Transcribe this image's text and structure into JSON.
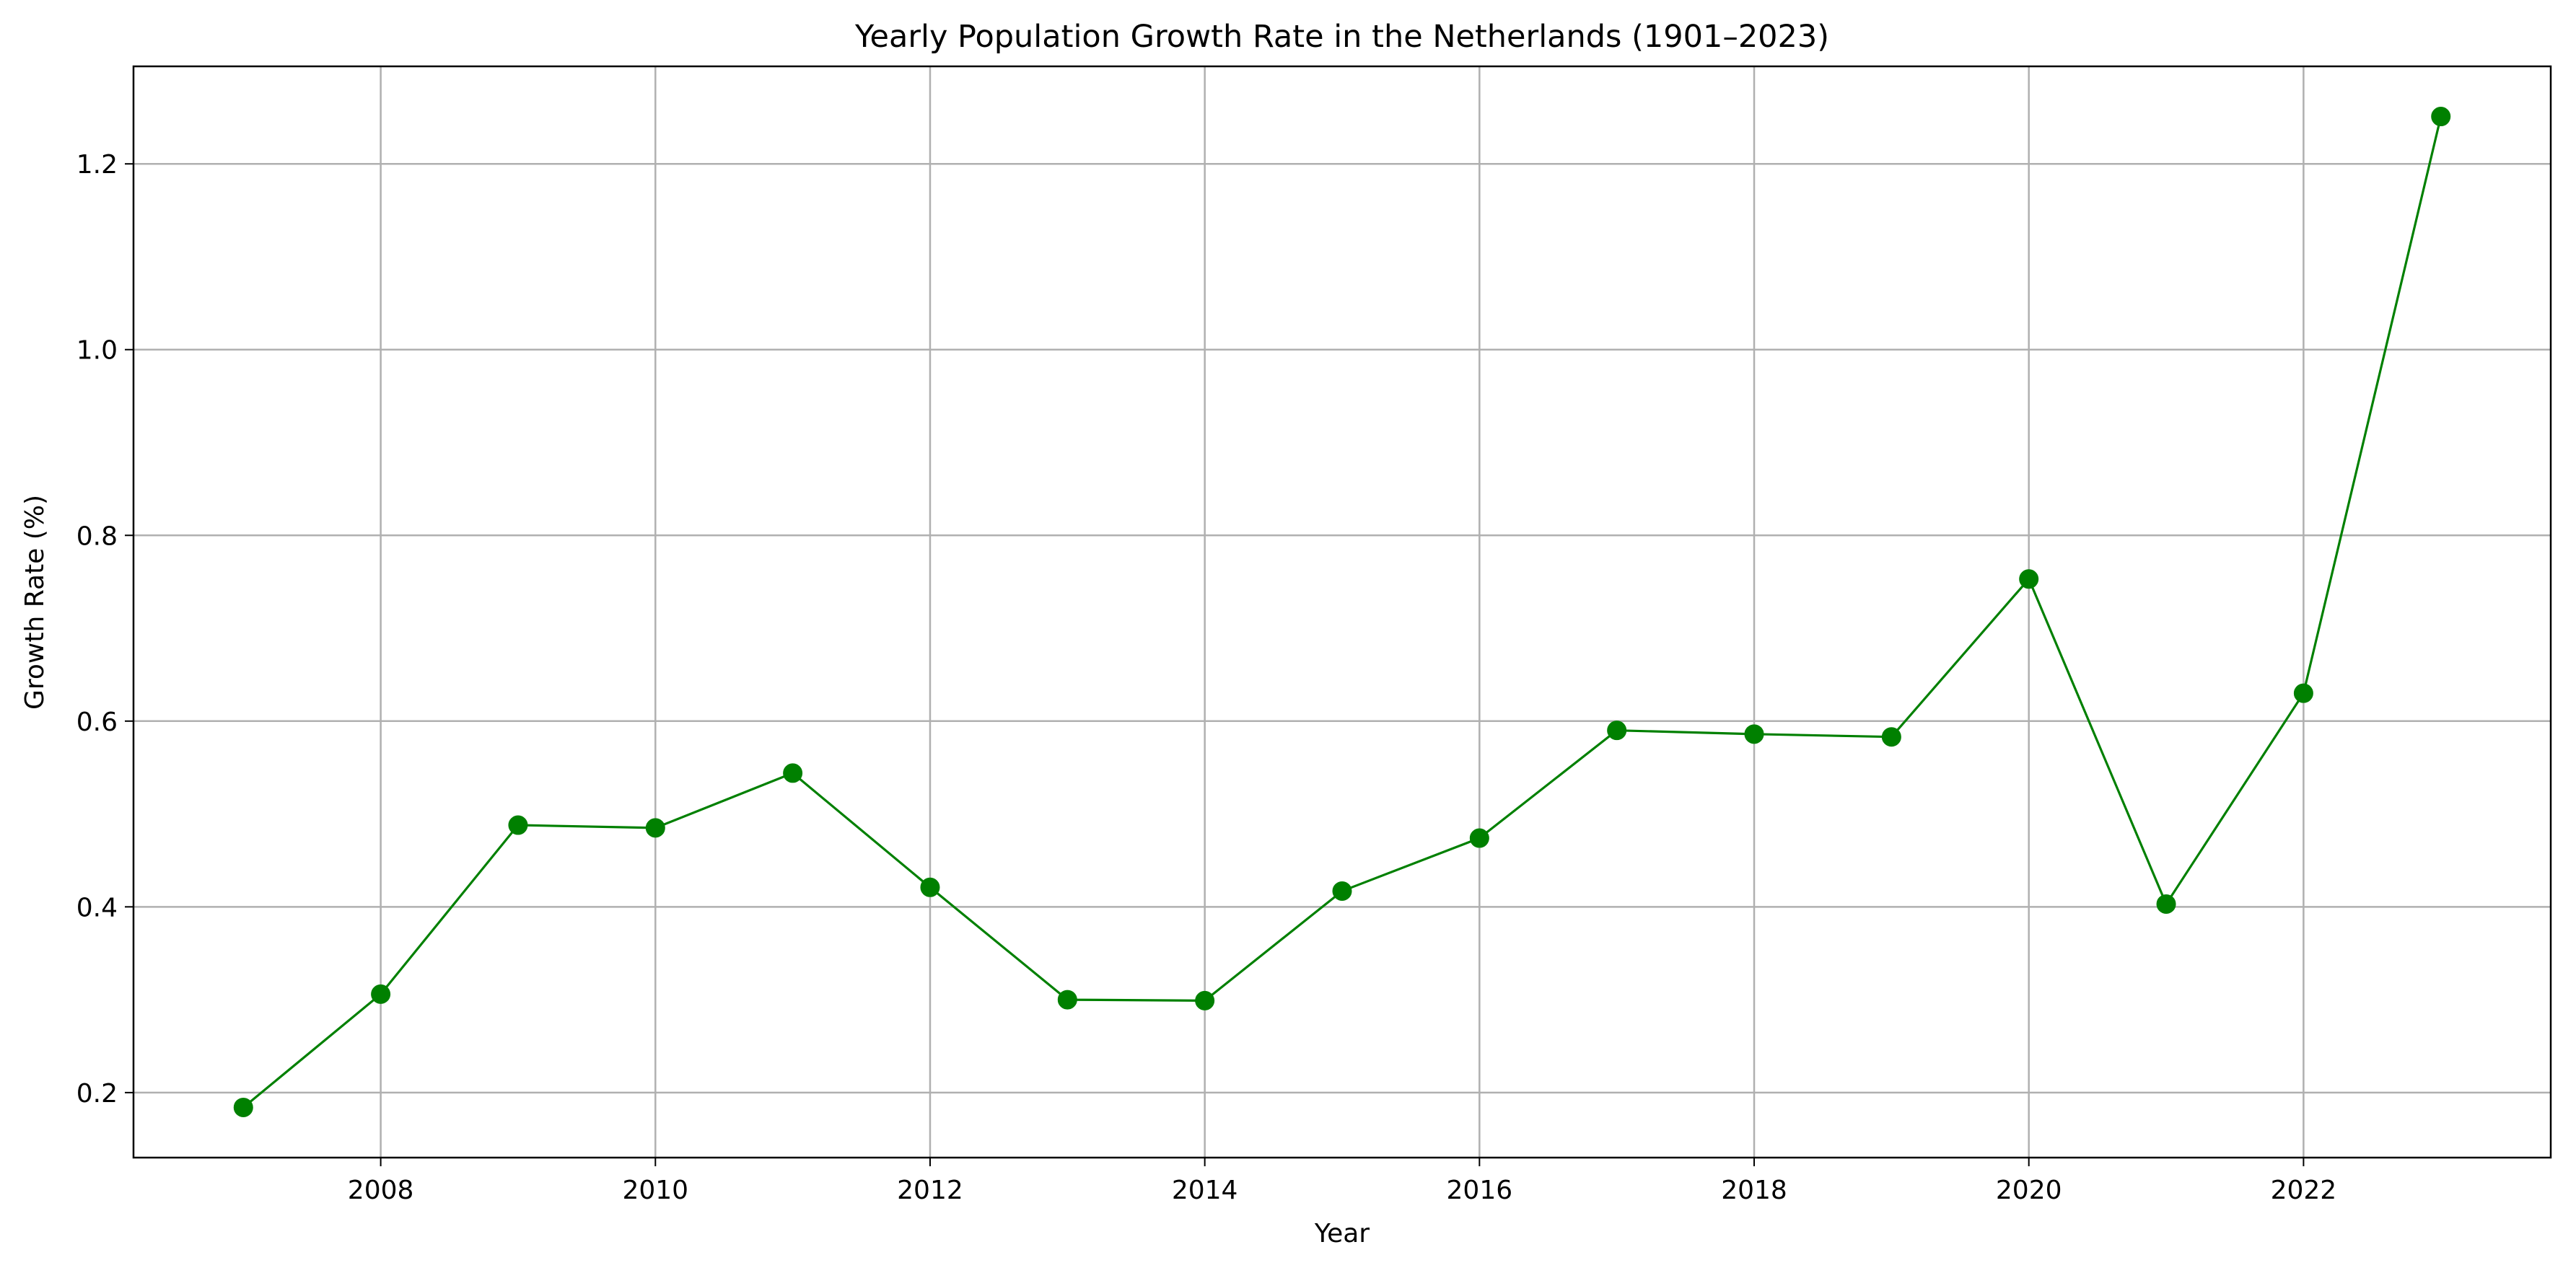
{
  "chart_data": {
    "type": "line",
    "title": "Yearly Population Growth Rate in the Netherlands (1901–2023)",
    "xlabel": "Year",
    "ylabel": "Growth Rate (%)",
    "xlim": [
      2006.2,
      2023.8
    ],
    "ylim": [
      0.13,
      1.305
    ],
    "xticks": [
      2008,
      2010,
      2012,
      2014,
      2016,
      2018,
      2020,
      2022
    ],
    "yticks": [
      0.2,
      0.4,
      0.6,
      0.8,
      1.0,
      1.2
    ],
    "grid": true,
    "legend": "none",
    "color": "#008000",
    "grid_color": "#b0b0b0",
    "series": [
      {
        "x": [
          2007,
          2008,
          2009,
          2010,
          2011,
          2012,
          2013,
          2014,
          2015,
          2016,
          2017,
          2018,
          2019,
          2020,
          2021,
          2022,
          2023
        ],
        "values": [
          0.184,
          0.306,
          0.488,
          0.485,
          0.544,
          0.421,
          0.3,
          0.299,
          0.417,
          0.474,
          0.59,
          0.586,
          0.583,
          0.753,
          0.403,
          0.63,
          1.251
        ]
      }
    ]
  }
}
